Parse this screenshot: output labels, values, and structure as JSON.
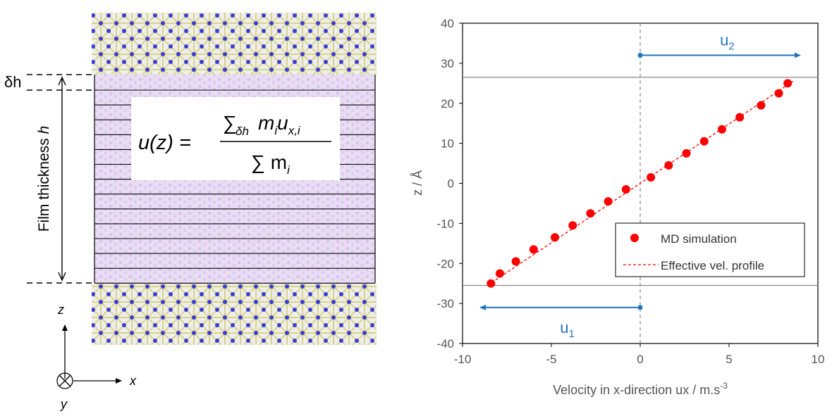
{
  "schematic": {
    "delta_h_label": "δh",
    "film_thickness_label": "Film thickness",
    "film_thickness_symbol": "h",
    "formula": {
      "lhs": "u(z) =",
      "numerator_sum": "∑",
      "numerator_sub": "δh",
      "numerator_terms": "m",
      "denominator": "∑ m"
    },
    "axes": {
      "z": "z",
      "x": "x",
      "y": "y"
    },
    "colors": {
      "wall_atoms": "#3b3bd6",
      "wall_bonds": "#d8d48a",
      "fluid": "#e6d8f2",
      "lines": "#000000"
    }
  },
  "chart_data": {
    "type": "scatter",
    "xlabel": "Velocity in x-direction ux / m.s",
    "xlabel_superscript": "-3",
    "ylabel": "z / Å",
    "xlim": [
      -10,
      10
    ],
    "ylim": [
      -40,
      40
    ],
    "xticks": [
      -10,
      -5,
      0,
      5,
      10
    ],
    "yticks": [
      -40,
      -30,
      -20,
      -10,
      0,
      10,
      20,
      30,
      40
    ],
    "grid": false,
    "series": [
      {
        "name": "MD simulation",
        "marker": "circle",
        "color": "#ff0000",
        "x": [
          -8.4,
          -7.9,
          -7.0,
          -6.0,
          -4.8,
          -3.8,
          -2.8,
          -1.8,
          -0.8,
          0.6,
          1.6,
          2.6,
          3.6,
          4.6,
          5.6,
          6.8,
          7.8,
          8.3
        ],
        "y": [
          -25,
          -22.5,
          -19.5,
          -16.5,
          -13.5,
          -10.5,
          -7.5,
          -4.5,
          -1.5,
          1.5,
          4.5,
          7.5,
          10.5,
          13.5,
          16.5,
          19.5,
          22.5,
          25
        ]
      },
      {
        "name": "Effective vel. profile",
        "style": "dashed-line",
        "color": "#ff0000",
        "x": [
          -8.6,
          8.6
        ],
        "y": [
          -25.5,
          25.5
        ]
      }
    ],
    "reference_lines": {
      "horizontal_y": [
        26.5,
        -25.5
      ],
      "vertical_x": 0
    },
    "annotations": [
      {
        "label": "u",
        "sub": "2",
        "from": [
          0,
          32
        ],
        "to": [
          9,
          32
        ],
        "color": "#1f74c0"
      },
      {
        "label": "u",
        "sub": "1",
        "from": [
          0,
          -31
        ],
        "to": [
          -9,
          -31
        ],
        "color": "#1f74c0"
      }
    ],
    "legend": {
      "position": "bottom-right"
    }
  }
}
